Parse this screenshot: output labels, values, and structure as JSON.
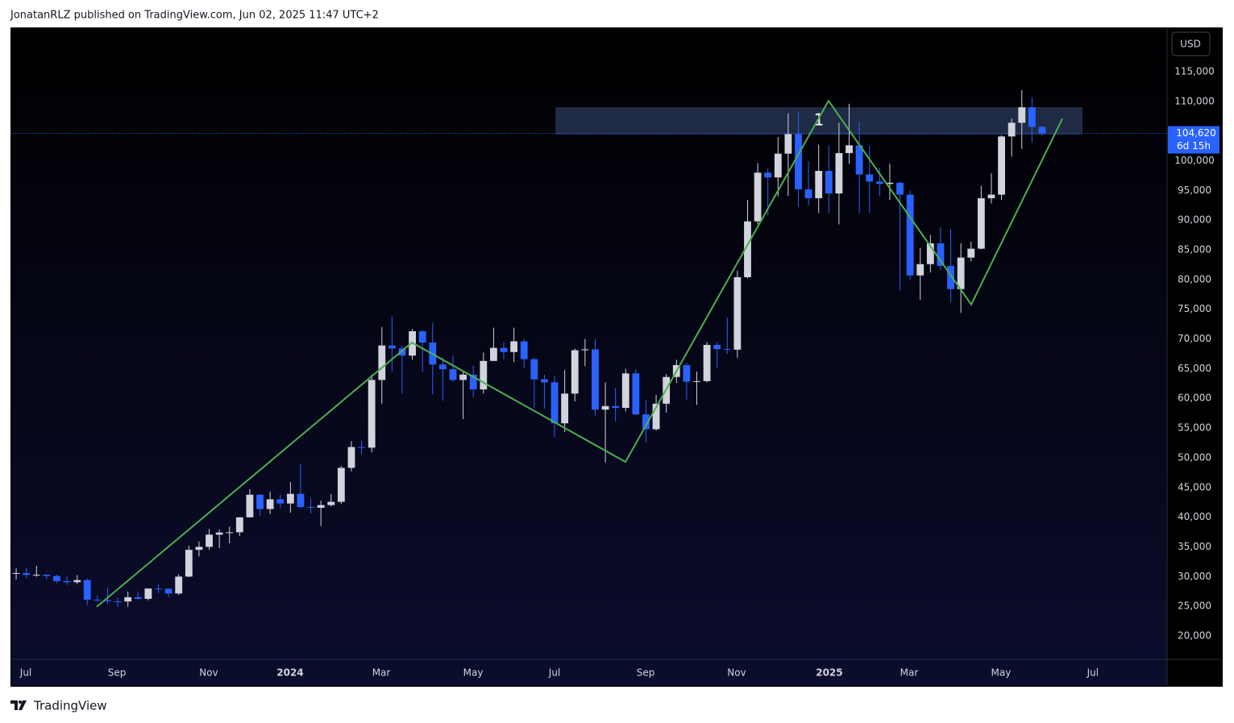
{
  "header": {
    "text": "JonatanRLZ published on TradingView.com, Jun 02, 2025 11:47 UTC+2"
  },
  "footer": {
    "brand": "TradingView"
  },
  "chart_data": {
    "type": "candlestick",
    "currency_label": "USD",
    "xlim": [
      -0.56,
      113.3
    ],
    "xticks": [
      {
        "value": 0.95,
        "label": "Jul"
      },
      {
        "value": 9.92,
        "label": "Sep"
      },
      {
        "value": 18.96,
        "label": "Nov"
      },
      {
        "value": 26.97,
        "label": "2024"
      },
      {
        "value": 35.94,
        "label": "Mar"
      },
      {
        "value": 44.99,
        "label": "May"
      },
      {
        "value": 53.0,
        "label": "Jul"
      },
      {
        "value": 61.97,
        "label": "Sep"
      },
      {
        "value": 70.93,
        "label": "Nov"
      },
      {
        "value": 80.05,
        "label": "2025"
      },
      {
        "value": 87.91,
        "label": "Mar"
      },
      {
        "value": 96.95,
        "label": "May"
      },
      {
        "value": 105.99,
        "label": "Jul"
      }
    ],
    "ylim": [
      16060,
      122460
    ],
    "yticks": [
      {
        "value": 20000,
        "label": "20,000"
      },
      {
        "value": 25000,
        "label": "25,000"
      },
      {
        "value": 30000,
        "label": "30,000"
      },
      {
        "value": 35000,
        "label": "35,000"
      },
      {
        "value": 40000,
        "label": "40,000"
      },
      {
        "value": 45000,
        "label": "45,000"
      },
      {
        "value": 50000,
        "label": "50,000"
      },
      {
        "value": 55000,
        "label": "55,000"
      },
      {
        "value": 60000,
        "label": "60,000"
      },
      {
        "value": 65000,
        "label": "65,000"
      },
      {
        "value": 70000,
        "label": "70,000"
      },
      {
        "value": 75000,
        "label": "75,000"
      },
      {
        "value": 80000,
        "label": "80,000"
      },
      {
        "value": 85000,
        "label": "85,000"
      },
      {
        "value": 90000,
        "label": "90,000"
      },
      {
        "value": 95000,
        "label": "95,000"
      },
      {
        "value": 100000,
        "label": "100,000"
      },
      {
        "value": 105000,
        "label": "105,000"
      },
      {
        "value": 110000,
        "label": "110,000"
      },
      {
        "value": 115000,
        "label": "115,000"
      }
    ],
    "series": [
      {
        "up_color": "#d1d4dc",
        "down_color": "#2962ff",
        "open": [
          30470,
          30590,
          30280,
          30300,
          30080,
          29230,
          29050,
          29400,
          26100,
          26000,
          25830,
          25800,
          26520,
          26250,
          27980,
          27940,
          27150,
          29990,
          34500,
          35000,
          37050,
          37400,
          37450,
          39970,
          43780,
          41370,
          43000,
          42300,
          43920,
          41700,
          41580,
          42030,
          42580,
          48300,
          51800,
          51700,
          63100,
          68900,
          68400,
          67200,
          71300,
          69400,
          65700,
          64900,
          63100,
          64000,
          61500,
          66300,
          68500,
          67800,
          69600,
          66600,
          63200,
          62700,
          55800,
          60800,
          68100,
          68250,
          58100,
          58700,
          58400,
          64200,
          57300,
          54800,
          59100,
          63600,
          65600,
          62800,
          62900,
          69000,
          68300,
          68200,
          80400,
          89800,
          98000,
          97200,
          101200,
          104500,
          95200,
          93700,
          98300,
          94500,
          101300,
          102600,
          97700,
          96500,
          96100,
          96300,
          94300,
          80700,
          82600,
          86100,
          82300,
          78400,
          83700,
          85200,
          93700,
          94300,
          104100,
          106400,
          109000,
          105700
        ],
        "high": [
          31400,
          31500,
          31800,
          30400,
          30300,
          30050,
          30250,
          29700,
          26800,
          28150,
          26400,
          27450,
          27480,
          28000,
          28600,
          28000,
          30400,
          35200,
          35900,
          38000,
          37900,
          38400,
          40000,
          44700,
          43800,
          44300,
          43800,
          45900,
          48970,
          43200,
          42800,
          43900,
          48600,
          52800,
          52900,
          64000,
          72000,
          73800,
          68900,
          71700,
          71400,
          72700,
          66900,
          67200,
          64700,
          65500,
          67700,
          71900,
          69500,
          71900,
          70000,
          66900,
          64000,
          63800,
          64800,
          68400,
          70000,
          70000,
          62700,
          61800,
          65000,
          64900,
          59800,
          60600,
          64100,
          66500,
          66000,
          64500,
          69500,
          69500,
          73600,
          81500,
          93400,
          99600,
          98800,
          104000,
          108000,
          108300,
          99900,
          102700,
          102600,
          106400,
          109600,
          106500,
          102500,
          98800,
          99500,
          96500,
          95000,
          85300,
          87500,
          88800,
          88500,
          86100,
          86400,
          95800,
          97900,
          104300,
          107100,
          111900,
          110700,
          105900
        ],
        "low": [
          29500,
          29700,
          29950,
          29500,
          28860,
          28600,
          28700,
          25160,
          25750,
          25350,
          24900,
          24900,
          26200,
          26000,
          27200,
          26550,
          26900,
          29900,
          33400,
          34500,
          34800,
          35600,
          36800,
          39970,
          40200,
          40500,
          41500,
          40750,
          41500,
          40600,
          38500,
          41800,
          42200,
          47700,
          50600,
          50900,
          59100,
          64500,
          60800,
          66500,
          64500,
          60700,
          59600,
          62800,
          56500,
          60200,
          60800,
          66300,
          66600,
          66100,
          65100,
          58400,
          58300,
          53500,
          54300,
          59500,
          65400,
          57100,
          49200,
          56100,
          57800,
          57200,
          52600,
          54600,
          57600,
          62600,
          59800,
          58900,
          62700,
          65100,
          67500,
          66800,
          80200,
          89300,
          90800,
          94000,
          94100,
          92200,
          92500,
          91200,
          91200,
          89300,
          99500,
          91200,
          91200,
          94000,
          93400,
          78200,
          80000,
          76600,
          81200,
          81600,
          76200,
          74400,
          83100,
          85100,
          92800,
          93400,
          100700,
          102000,
          103100,
          104200
        ],
        "close": [
          30590,
          30280,
          30300,
          30080,
          29230,
          29050,
          29400,
          26100,
          26000,
          25830,
          25800,
          26520,
          26250,
          27980,
          27940,
          27150,
          29990,
          34500,
          35000,
          37050,
          37400,
          37450,
          39970,
          43780,
          41370,
          43000,
          42300,
          43920,
          41700,
          41580,
          42030,
          42580,
          48300,
          51800,
          51700,
          63100,
          68900,
          68400,
          67200,
          71300,
          69400,
          65700,
          64900,
          63100,
          64000,
          61500,
          66300,
          68500,
          67800,
          69600,
          66600,
          63200,
          62700,
          55800,
          60800,
          68100,
          68250,
          58100,
          58700,
          58400,
          64200,
          57300,
          54800,
          59100,
          63600,
          65600,
          62800,
          62900,
          69000,
          68300,
          68200,
          80400,
          89800,
          98000,
          97200,
          101200,
          104500,
          95200,
          93700,
          98300,
          94500,
          101300,
          102600,
          97700,
          96500,
          96100,
          96300,
          94300,
          80700,
          82600,
          86100,
          82300,
          78400,
          83700,
          85200,
          93700,
          94300,
          104100,
          106400,
          109000,
          105700,
          104620
        ]
      }
    ],
    "last_price": {
      "value": 104620,
      "label": "104,620",
      "countdown": "6d 15h",
      "color": "#2962ff"
    },
    "zone": {
      "x": [
        53.08,
        104.97
      ],
      "y": [
        104410,
        109030
      ],
      "label": "1",
      "color": "#1f2b45"
    },
    "zigzag": {
      "color": "#4caf50",
      "x": [
        7.93,
        38.96,
        59.98,
        79.97,
        94.02,
        102.99
      ],
      "y": [
        24900,
        69400,
        49300,
        110100,
        75800,
        107100
      ]
    }
  }
}
